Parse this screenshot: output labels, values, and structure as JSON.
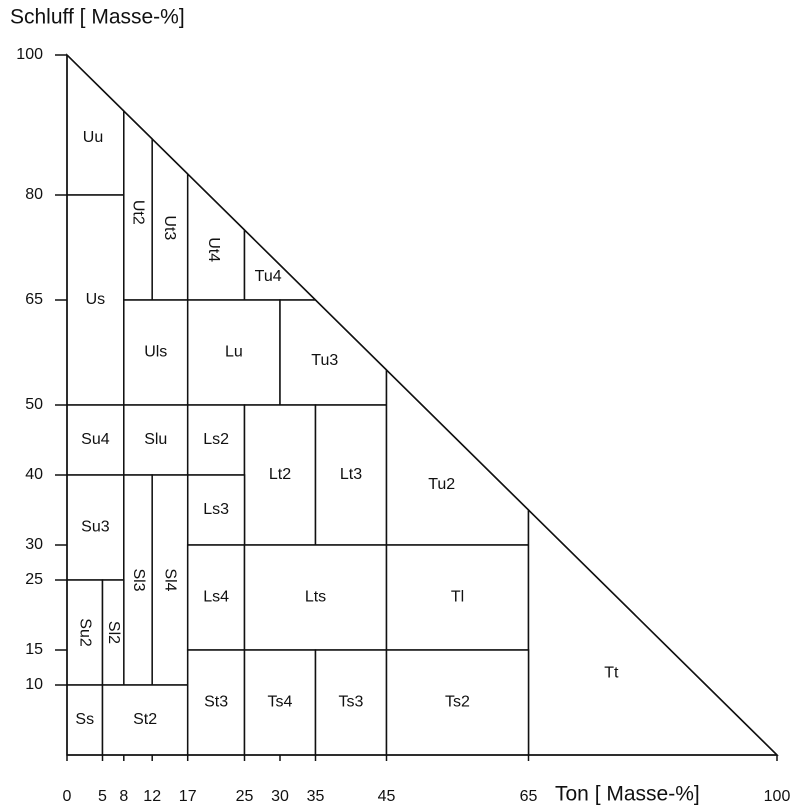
{
  "chart_data": {
    "type": "soil-triangle",
    "y_label": "Schluff  [ Masse-%]",
    "x_label": "Ton [ Masse-%]",
    "xlim": [
      0,
      100
    ],
    "ylim": [
      0,
      100
    ],
    "xticks": [
      0,
      5,
      8,
      12,
      17,
      25,
      30,
      35,
      45,
      65,
      100
    ],
    "yticks": [
      10,
      15,
      25,
      30,
      40,
      50,
      65,
      80,
      100
    ],
    "regions": [
      {
        "label": "Uu",
        "x": [
          0,
          8
        ],
        "y": [
          80,
          100
        ]
      },
      {
        "label": "Us",
        "x": [
          0,
          8
        ],
        "y": [
          50,
          80
        ]
      },
      {
        "label": "Ut2",
        "x": [
          8,
          12
        ],
        "y": [
          65,
          100
        ]
      },
      {
        "label": "Ut3",
        "x": [
          12,
          17
        ],
        "y": [
          65,
          100
        ]
      },
      {
        "label": "Ut4",
        "x": [
          17,
          25
        ],
        "y": [
          65,
          100
        ]
      },
      {
        "label": "Tu4",
        "x": [
          25,
          35
        ],
        "y": [
          65,
          100
        ]
      },
      {
        "label": "Uls",
        "x": [
          8,
          17
        ],
        "y": [
          50,
          65
        ]
      },
      {
        "label": "Lu",
        "x": [
          17,
          30
        ],
        "y": [
          50,
          65
        ]
      },
      {
        "label": "Tu3",
        "x": [
          30,
          45
        ],
        "y": [
          50,
          65
        ]
      },
      {
        "label": "Su4",
        "x": [
          0,
          8
        ],
        "y": [
          40,
          50
        ]
      },
      {
        "label": "Slu",
        "x": [
          8,
          17
        ],
        "y": [
          40,
          50
        ]
      },
      {
        "label": "Ls2",
        "x": [
          17,
          25
        ],
        "y": [
          40,
          50
        ]
      },
      {
        "label": "Lt2",
        "x": [
          25,
          35
        ],
        "y": [
          30,
          50
        ]
      },
      {
        "label": "Lt3",
        "x": [
          35,
          45
        ],
        "y": [
          30,
          50
        ]
      },
      {
        "label": "Tu2",
        "x": [
          45,
          65
        ],
        "y": [
          30,
          100
        ]
      },
      {
        "label": "Su3",
        "x": [
          0,
          8
        ],
        "y": [
          25,
          40
        ]
      },
      {
        "label": "Ls3",
        "x": [
          17,
          25
        ],
        "y": [
          30,
          40
        ]
      },
      {
        "label": "Sl3",
        "x": [
          8,
          12
        ],
        "y": [
          10,
          40
        ]
      },
      {
        "label": "Sl4",
        "x": [
          12,
          17
        ],
        "y": [
          10,
          40
        ]
      },
      {
        "label": "Su2",
        "x": [
          0,
          5
        ],
        "y": [
          10,
          25
        ]
      },
      {
        "label": "Sl2",
        "x": [
          5,
          8
        ],
        "y": [
          10,
          25
        ]
      },
      {
        "label": "Ls4",
        "x": [
          17,
          25
        ],
        "y": [
          15,
          30
        ]
      },
      {
        "label": "Lts",
        "x": [
          25,
          45
        ],
        "y": [
          15,
          30
        ]
      },
      {
        "label": "Tl",
        "x": [
          45,
          65
        ],
        "y": [
          15,
          30
        ]
      },
      {
        "label": "Tt",
        "x": [
          65,
          100
        ],
        "y": [
          0,
          100
        ]
      },
      {
        "label": "Ss",
        "x": [
          0,
          5
        ],
        "y": [
          0,
          10
        ]
      },
      {
        "label": "St2",
        "x": [
          5,
          17
        ],
        "y": [
          0,
          10
        ]
      },
      {
        "label": "St3",
        "x": [
          17,
          25
        ],
        "y": [
          0,
          15
        ]
      },
      {
        "label": "Ts4",
        "x": [
          25,
          35
        ],
        "y": [
          0,
          15
        ]
      },
      {
        "label": "Ts3",
        "x": [
          35,
          45
        ],
        "y": [
          0,
          15
        ]
      },
      {
        "label": "Ts2",
        "x": [
          45,
          65
        ],
        "y": [
          0,
          15
        ]
      }
    ]
  }
}
